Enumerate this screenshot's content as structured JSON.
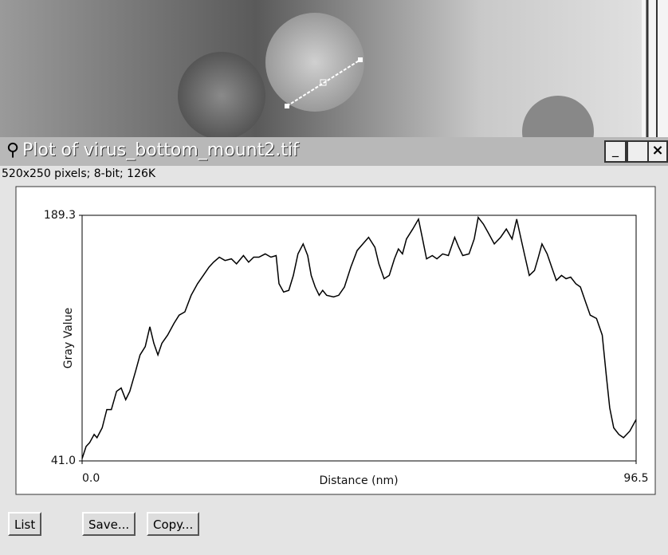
{
  "window": {
    "title": "Plot of virus_bottom_mount2.tif",
    "info": "520x250 pixels; 8-bit; 126K",
    "buttons": [
      "List",
      "Save...",
      "Copy..."
    ]
  },
  "chart_data": {
    "type": "line",
    "x_label": "Distance (nm)",
    "y_label": "Gray Value",
    "xlim": [
      0,
      96.5
    ],
    "ylim": [
      41,
      189.3
    ],
    "xticks": [
      {
        "value": 0,
        "label": "0.0"
      },
      96.5
    ],
    "yticks": [
      {
        "value": 41,
        "label": "41.0"
      },
      189.3
    ],
    "color": "#000000",
    "x": [
      0.0,
      0.7,
      1.3,
      2.1,
      2.6,
      3.5,
      4.3,
      5.1,
      6.0,
      6.8,
      7.6,
      8.3,
      9.3,
      10.1,
      11.0,
      11.8,
      12.5,
      13.2,
      13.9,
      14.9,
      16.0,
      16.9,
      17.9,
      19.0,
      20.1,
      21.1,
      22.1,
      22.9,
      23.9,
      24.9,
      26.0,
      26.9,
      28.1,
      29.0,
      29.9,
      30.8,
      31.9,
      32.9,
      33.8,
      34.3,
      35.1,
      36.0,
      36.8,
      37.6,
      38.5,
      39.3,
      39.9,
      40.6,
      41.3,
      41.9,
      42.6,
      43.8,
      44.7,
      45.7,
      46.8,
      47.9,
      48.9,
      49.9,
      51.0,
      51.7,
      52.6,
      53.5,
      54.4,
      55.1,
      55.8,
      56.5,
      57.6,
      58.6,
      59.3,
      60.0,
      61.0,
      61.8,
      62.8,
      63.8,
      64.9,
      65.6,
      66.3,
      67.4,
      68.3,
      69.0,
      69.9,
      70.7,
      71.8,
      72.9,
      73.9,
      74.9,
      75.7,
      76.4,
      77.1,
      77.9,
      78.8,
      79.4,
      80.1,
      81.0,
      81.8,
      82.6,
      83.5,
      84.3,
      85.1,
      86.0,
      86.8,
      87.8,
      88.5,
      89.6,
      90.6,
      91.3,
      91.9,
      92.6,
      93.5,
      94.3,
      95.4,
      96.5
    ],
    "values": [
      42.4,
      49.7,
      52,
      57,
      55,
      61,
      72,
      72,
      83,
      85,
      78,
      83,
      95,
      105,
      110,
      122,
      112,
      105,
      112,
      117,
      124,
      129,
      131,
      141,
      148,
      153,
      158,
      161,
      164,
      162,
      163,
      160,
      165,
      161,
      164,
      164,
      166,
      164,
      165,
      148,
      143,
      144,
      153,
      166,
      172,
      165,
      153,
      146,
      141,
      144,
      141,
      140,
      141,
      146,
      158,
      168,
      172,
      176,
      170,
      160,
      151,
      153,
      163,
      169,
      166,
      175,
      181,
      187,
      175,
      163,
      165,
      163,
      166,
      165,
      176,
      170,
      165,
      166,
      175,
      188,
      184,
      179,
      172,
      176,
      181,
      175,
      187,
      176,
      165,
      153,
      156,
      163,
      172,
      166,
      158,
      150,
      153,
      151,
      152,
      148,
      146,
      136,
      129,
      127,
      117,
      93,
      73,
      61,
      57,
      55,
      59,
      66
    ]
  }
}
